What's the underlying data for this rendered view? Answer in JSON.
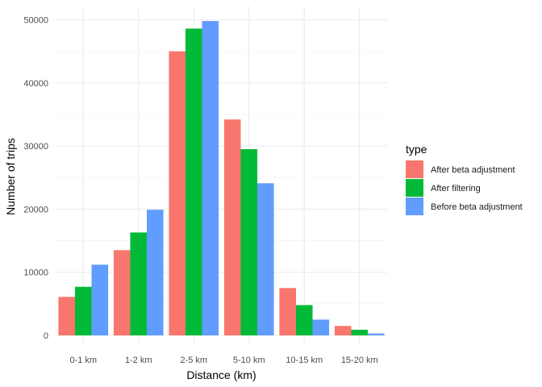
{
  "chart_data": {
    "type": "bar",
    "title": "",
    "xlabel": "Distance (km)",
    "ylabel": "Number of trips",
    "categories": [
      "0-1 km",
      "1-2 km",
      "2-5 km",
      "5-10 km",
      "10-15 km",
      "15-20 km"
    ],
    "series": [
      {
        "name": "After beta adjustment",
        "color": "#F8766D",
        "values": [
          6100,
          13500,
          45000,
          34200,
          7500,
          1500
        ]
      },
      {
        "name": "After filtering",
        "color": "#00BA38",
        "values": [
          7700,
          16300,
          48600,
          29500,
          4800,
          900
        ]
      },
      {
        "name": "Before beta adjustment",
        "color": "#619CFF",
        "values": [
          11200,
          19900,
          49800,
          24100,
          2500,
          300
        ]
      }
    ],
    "ylim": [
      0,
      52000
    ],
    "yticks": [
      0,
      10000,
      20000,
      30000,
      40000,
      50000
    ],
    "grid": true,
    "legend": {
      "title": "type",
      "position": "right"
    }
  }
}
